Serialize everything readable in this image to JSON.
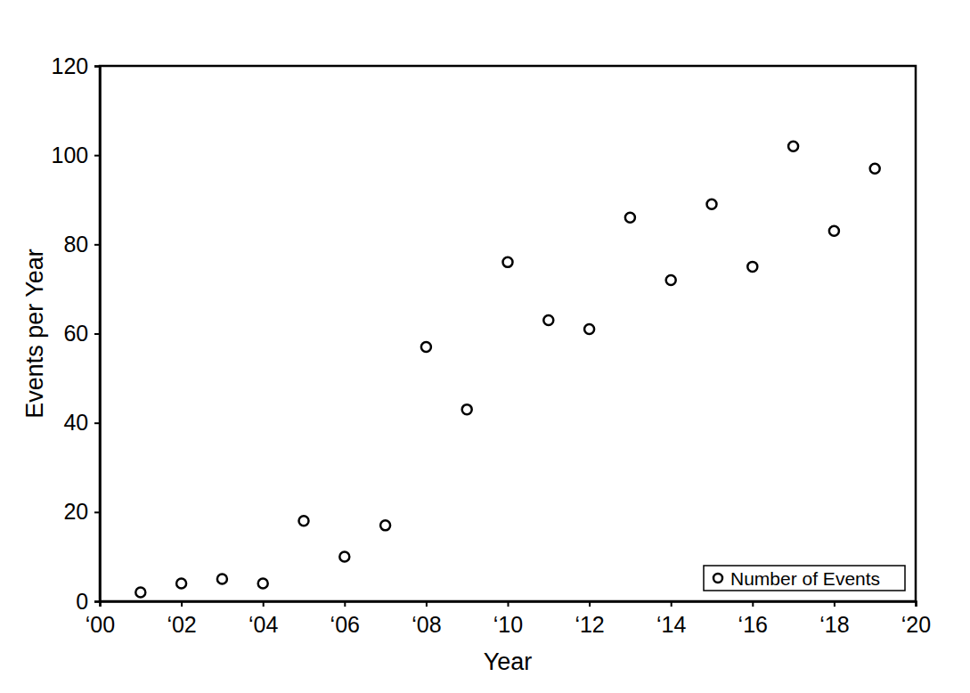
{
  "chart_data": {
    "type": "scatter",
    "x_label": "Year",
    "y_label": "Events per Year",
    "x": [
      2001,
      2002,
      2003,
      2004,
      2005,
      2006,
      2007,
      2008,
      2009,
      2010,
      2011,
      2012,
      2013,
      2014,
      2015,
      2016,
      2017,
      2018,
      2019
    ],
    "series": [
      {
        "name": "Number of Events",
        "color": "#000000",
        "marker": "circle",
        "values": [
          2,
          4,
          5,
          4,
          18,
          10,
          17,
          57,
          43,
          76,
          63,
          61,
          86,
          72,
          89,
          75,
          102,
          83,
          97
        ]
      }
    ],
    "xlim": [
      2000,
      2020
    ],
    "xticks": [
      {
        "value": 2000,
        "label": "‘00"
      },
      {
        "value": 2002,
        "label": "‘02"
      },
      {
        "value": 2004,
        "label": "‘04"
      },
      {
        "value": 2006,
        "label": "‘06"
      },
      {
        "value": 2008,
        "label": "‘08"
      },
      {
        "value": 2010,
        "label": "‘10"
      },
      {
        "value": 2012,
        "label": "‘12"
      },
      {
        "value": 2014,
        "label": "‘14"
      },
      {
        "value": 2016,
        "label": "‘16"
      },
      {
        "value": 2018,
        "label": "‘18"
      },
      {
        "value": 2020,
        "label": "‘20"
      }
    ],
    "ylim": [
      0,
      120
    ],
    "yticks": [
      0,
      20,
      40,
      60,
      80,
      100,
      120
    ],
    "grid": false,
    "legend": "lower right"
  }
}
